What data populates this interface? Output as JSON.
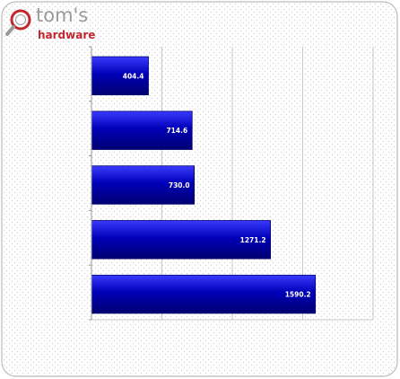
{
  "logo": {
    "main_text": "tom's",
    "sub_text": "hardware",
    "icon": "magnifier-icon"
  },
  "colors": {
    "bar_fill_light": "#3a3aff",
    "bar_fill_dark": "#0000b8",
    "bar_edge": "#000070",
    "label_color": "#ffffff",
    "grid_color": "#c8c8c8",
    "logo_gray": "#9a9a9a",
    "logo_red": "#c2262e"
  },
  "chart_data": {
    "type": "bar",
    "orientation": "horizontal",
    "title": "",
    "xlabel": "",
    "ylabel": "",
    "xlim": [
      0,
      2000
    ],
    "x_gridlines": [
      0,
      500,
      1000,
      1500,
      2000
    ],
    "grid": true,
    "values": [
      404.4,
      714.6,
      730.0,
      1271.2,
      1590.2
    ],
    "value_labels": [
      "404.4",
      "714.6",
      "730.0",
      "1271.2",
      "1590.2"
    ]
  }
}
